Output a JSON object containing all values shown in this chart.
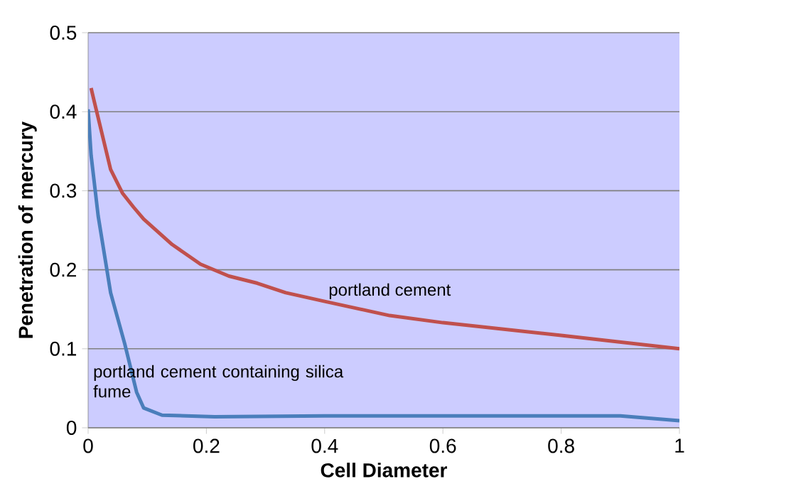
{
  "chart_data": {
    "type": "line",
    "xlabel": "Cell Diameter",
    "ylabel": "Penetration of mercury",
    "xlim": [
      0,
      1
    ],
    "ylim": [
      0,
      0.5
    ],
    "xticks": [
      0,
      0.2,
      0.4,
      0.6,
      0.8,
      1
    ],
    "yticks": [
      0,
      0.1,
      0.2,
      0.3,
      0.4,
      0.5
    ],
    "grid": "y",
    "legend": false,
    "marker": "none",
    "line_style": "solid",
    "series": [
      {
        "name": "portland cement",
        "color": "#c0504d",
        "x": [
          0.005,
          0.01,
          0.038,
          0.058,
          0.077,
          0.094,
          0.142,
          0.19,
          0.238,
          0.286,
          0.334,
          0.4,
          0.51,
          0.6,
          0.8,
          1.0
        ],
        "values": [
          0.43,
          0.414,
          0.327,
          0.297,
          0.279,
          0.264,
          0.232,
          0.207,
          0.192,
          0.183,
          0.171,
          0.16,
          0.142,
          0.133,
          0.117,
          0.1
        ]
      },
      {
        "name": "portland cement containing silica fume",
        "color": "#4a7ebb",
        "x": [
          0,
          0.005,
          0.017,
          0.038,
          0.062,
          0.082,
          0.094,
          0.125,
          0.214,
          0.4,
          0.9,
          1.0
        ],
        "values": [
          0.403,
          0.345,
          0.268,
          0.171,
          0.106,
          0.045,
          0.025,
          0.016,
          0.014,
          0.015,
          0.015,
          0.009
        ]
      }
    ]
  }
}
